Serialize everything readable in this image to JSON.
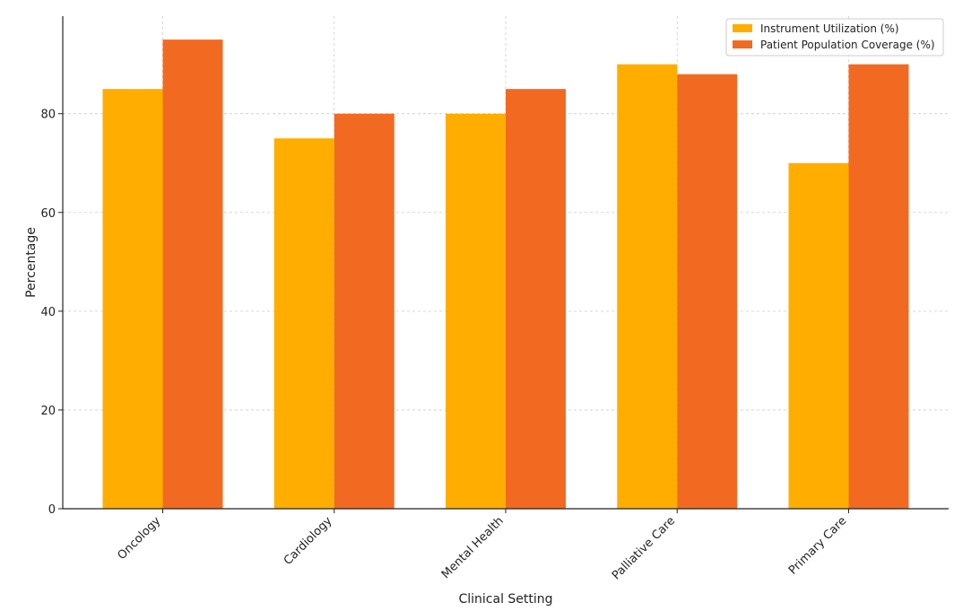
{
  "chart_data": {
    "type": "bar",
    "categories": [
      "Oncology",
      "Cardiology",
      "Mental Health",
      "Palliative Care",
      "Primary Care"
    ],
    "series": [
      {
        "name": "Instrument Utilization (%)",
        "values": [
          85,
          75,
          80,
          90,
          70
        ],
        "color": "#FFAE00"
      },
      {
        "name": "Patient Population Coverage (%)",
        "values": [
          95,
          80,
          85,
          88,
          90
        ],
        "color": "#F26A21"
      }
    ],
    "title": "",
    "xlabel": "Clinical Setting",
    "ylabel": "Percentage",
    "ylim": [
      0,
      99.75
    ],
    "yticks": [
      0,
      20,
      40,
      60,
      80
    ],
    "grid": true,
    "legend_position": "top-right"
  }
}
